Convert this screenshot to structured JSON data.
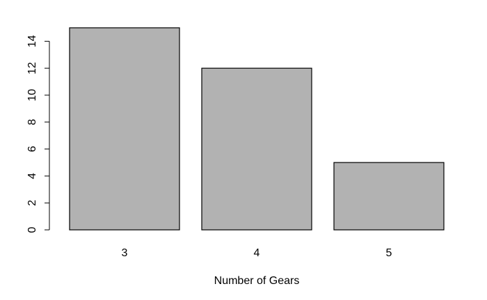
{
  "chart_data": {
    "type": "bar",
    "categories": [
      "3",
      "4",
      "5"
    ],
    "values": [
      15,
      12,
      5
    ],
    "title": "",
    "xlabel": "Number of Gears",
    "ylabel": "",
    "ylim": [
      0,
      15
    ],
    "y_ticks": [
      "0",
      "2",
      "4",
      "6",
      "8",
      "10",
      "12",
      "14"
    ],
    "grid": false,
    "legend": "none",
    "colors": {
      "bar_fill": "#b2b2b2",
      "bar_stroke": "#000000",
      "axis": "#000000"
    }
  }
}
